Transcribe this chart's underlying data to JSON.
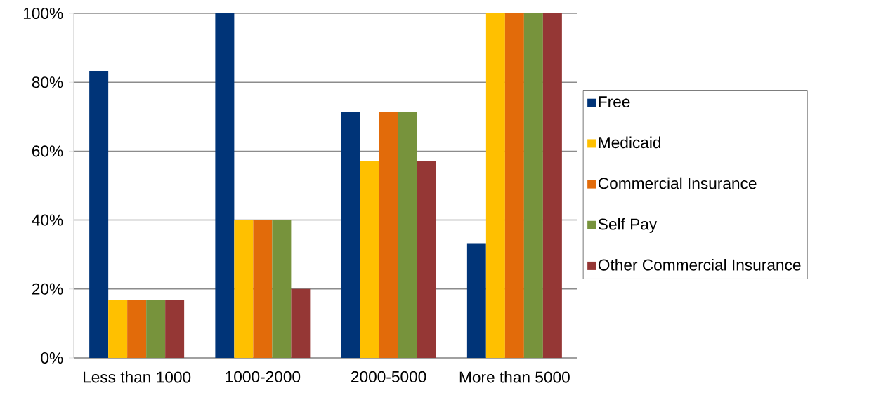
{
  "chart_data": {
    "type": "bar",
    "categories": [
      "Less than 1000",
      "1000-2000",
      "2000-5000",
      "More than 5000"
    ],
    "series": [
      {
        "name": "Free",
        "color": "#003478",
        "values": [
          83.3,
          100,
          71.4,
          33.3
        ]
      },
      {
        "name": "Medicaid",
        "color": "#ffc000",
        "values": [
          16.7,
          40,
          57.1,
          100
        ]
      },
      {
        "name": "Commercial Insurance",
        "color": "#e26b0a",
        "values": [
          16.7,
          40,
          71.4,
          100
        ]
      },
      {
        "name": "Self Pay",
        "color": "#77933c",
        "values": [
          16.7,
          40,
          71.4,
          100
        ]
      },
      {
        "name": "Other Commercial Insurance",
        "color": "#953735",
        "values": [
          16.7,
          20,
          57.1,
          100
        ]
      }
    ],
    "ylim": [
      0,
      100
    ],
    "yticks": [
      {
        "value": 0,
        "label": "0%"
      },
      {
        "value": 20,
        "label": "20%"
      },
      {
        "value": 40,
        "label": "40%"
      },
      {
        "value": 60,
        "label": "60%"
      },
      {
        "value": 80,
        "label": "80%"
      },
      {
        "value": 100,
        "label": "100%"
      }
    ],
    "grid": "y",
    "legend": "right"
  }
}
